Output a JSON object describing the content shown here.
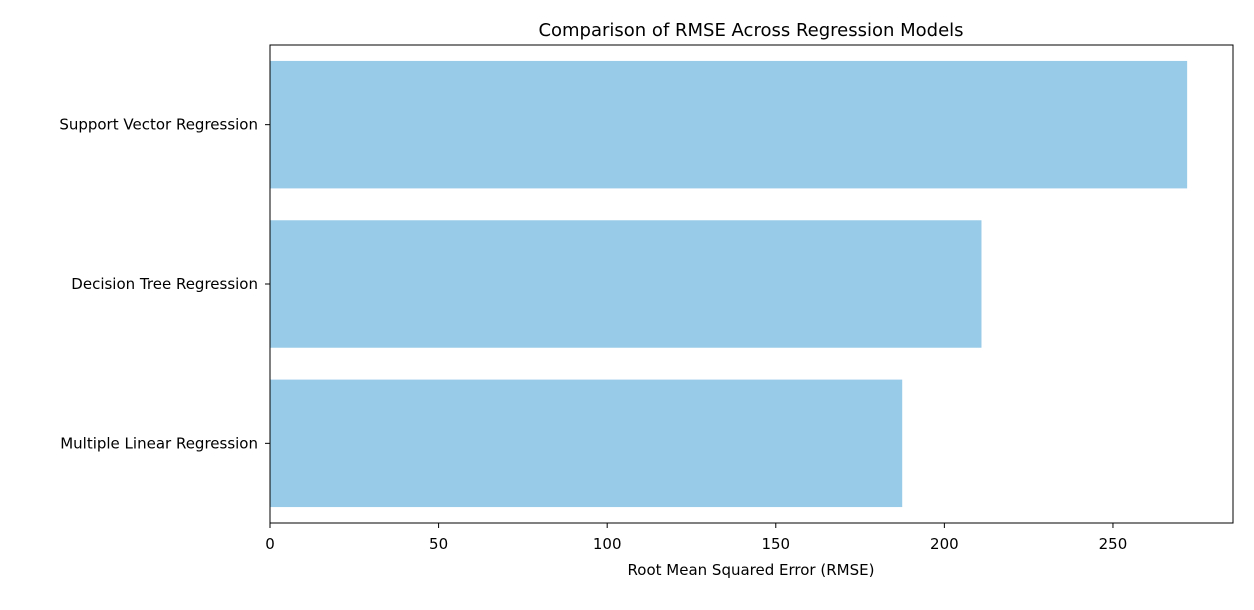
{
  "chart_data": {
    "type": "bar",
    "orientation": "horizontal",
    "title": "Comparison of RMSE Across Regression Models",
    "xlabel": "Root Mean Squared Error (RMSE)",
    "ylabel": "",
    "categories": [
      "Support Vector Regression",
      "Decision Tree Regression",
      "Multiple Linear Regression"
    ],
    "values": [
      272,
      211,
      187.5
    ],
    "xlim": [
      0,
      285.6
    ],
    "xticks": [
      0,
      50,
      100,
      150,
      200,
      250
    ],
    "bar_color": "#97cbe8",
    "grid": false,
    "legend": "none"
  }
}
